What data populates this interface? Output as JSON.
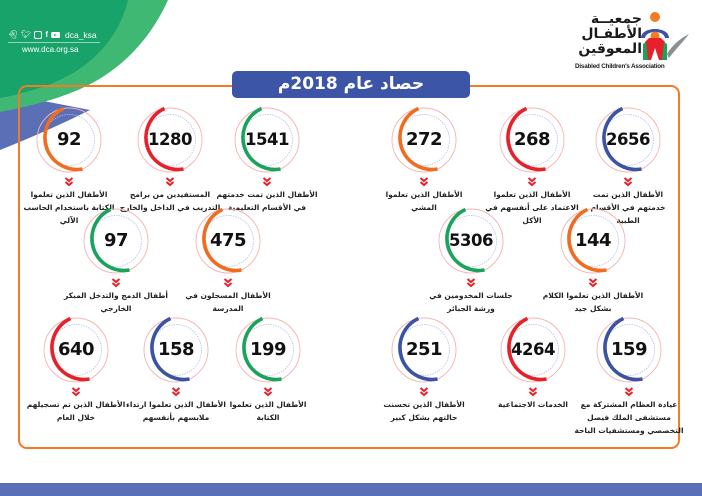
{
  "header": {
    "social_handle": "dca_ksa",
    "social_icons": [
      "snapchat-icon",
      "twitter-icon",
      "instagram-icon",
      "facebook-icon",
      "youtube-icon"
    ],
    "website": "www.dca.org.sa",
    "logo_arabic_lines": [
      "جمعيــة",
      "الأطفـال",
      "المعوقين"
    ],
    "logo_english": "Disabled Children's Association"
  },
  "title": "حصاد عام 2018م",
  "colors": {
    "green": "#1aa35b",
    "red": "#e8202a",
    "orange": "#f26c1f",
    "blue": "#3a53a4",
    "frame": "#f47a23",
    "title_bg": "#3d55a7",
    "footer": "#5a6fb6"
  },
  "stats": [
    {
      "value": "2656",
      "label": "الأطفال الذين تمت خدمتهم في الأقسام الطبية",
      "color": "blue"
    },
    {
      "value": "268",
      "label": "الأطفال الذين تعلموا الاعتماد على أنفسهم في الأكل",
      "color": "red"
    },
    {
      "value": "272",
      "label": "الأطفال الذين تعلموا المشي",
      "color": "orange"
    },
    {
      "value": "1541",
      "label": "الأطفال الذين تمت خدمتهم في الأقسام التعليمية",
      "color": "green"
    },
    {
      "value": "1280",
      "label": "المستفيدين من برامج التدريب في الداخل والخارج",
      "color": "red"
    },
    {
      "value": "92",
      "label": "الأطفال الذين تعلموا الكتابة باستخدام الحاسب الآلي",
      "color": "orange"
    },
    {
      "value": "144",
      "label": "الأطفال الذين تعلموا الكلام بشكل جيد",
      "color": "orange"
    },
    {
      "value": "5306",
      "label": "جلسات المخدومين في ورشة الجبائر",
      "color": "green"
    },
    {
      "value": "475",
      "label": "الأطفال المسجلون في المدرسة",
      "color": "orange"
    },
    {
      "value": "97",
      "label": "أطفال الدمج والتدخل المبكر الخارجي",
      "color": "green"
    },
    {
      "value": "159",
      "label": "عيادة العظام المشتركة مع مستشفى الملك فيصل التخصصي ومستشفيات الباحة",
      "color": "blue"
    },
    {
      "value": "4264",
      "label": "الخدمات الاجتماعية",
      "color": "red"
    },
    {
      "value": "251",
      "label": "الأطفال الذين تحسنت حالتهم بشكل كبير",
      "color": "blue"
    },
    {
      "value": "199",
      "label": "الأطفال الذين تعلموا الكتابة",
      "color": "green"
    },
    {
      "value": "158",
      "label": "الأطفال الذين تعلموا ارتداء ملابسهم بأنفسهم",
      "color": "blue"
    },
    {
      "value": "640",
      "label": "الأطفال الذين تم تسجيلهم خلال العام",
      "color": "red"
    }
  ]
}
